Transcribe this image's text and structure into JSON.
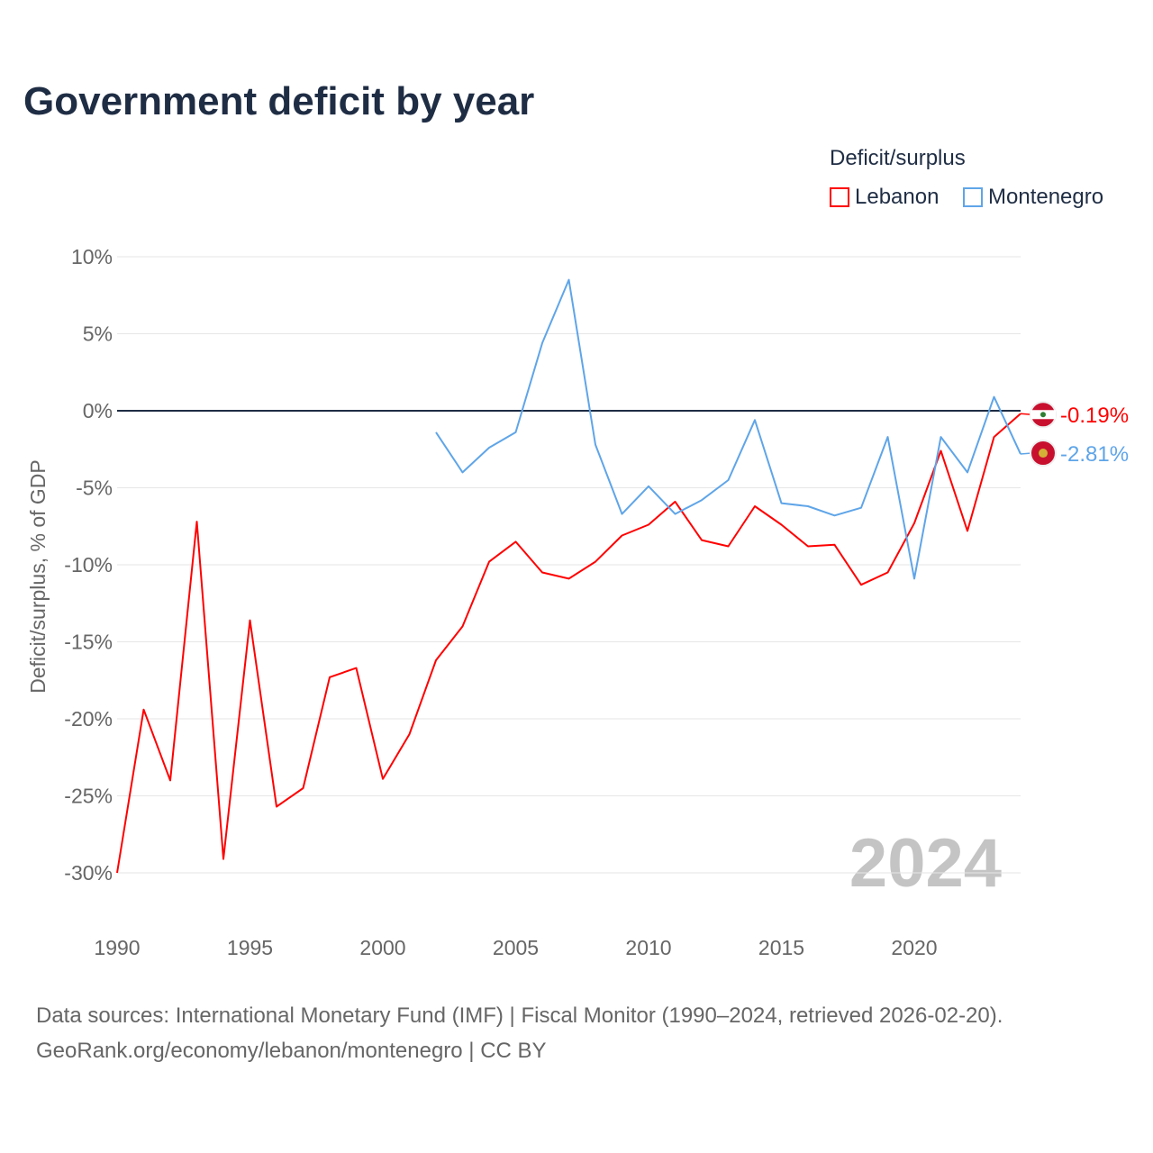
{
  "title": "Government deficit by year",
  "legend": {
    "title": "Deficit/surplus",
    "items": [
      {
        "name": "Lebanon",
        "color": "#ff0000"
      },
      {
        "name": "Montenegro",
        "color": "#5fa5e8"
      }
    ]
  },
  "watermark_year": "2024",
  "source": {
    "line1": "Data sources: International Monetary Fund (IMF) | Fiscal Monitor (1990–2024, retrieved 2026-02-20).",
    "line2": "GeoRank.org/economy/lebanon/montenegro | CC BY"
  },
  "chart_data": {
    "type": "line",
    "title": "Government deficit by year",
    "xlabel": "",
    "ylabel": "Deficit/surplus, % of GDP",
    "xlim": [
      1990,
      2024
    ],
    "ylim": [
      -33,
      11
    ],
    "xticks": [
      1990,
      1995,
      2000,
      2005,
      2010,
      2015,
      2020
    ],
    "yticks": [
      10,
      5,
      0,
      -5,
      -10,
      -15,
      -20,
      -25,
      -30
    ],
    "ytick_labels": [
      "10%",
      "5%",
      "0%",
      "-5%",
      "-10%",
      "-15%",
      "-20%",
      "-25%",
      "-30%"
    ],
    "grid": true,
    "legend_position": "top-right",
    "series": [
      {
        "name": "Lebanon",
        "color": "#ff0000",
        "end_label": "-0.19%",
        "start_year": 1990,
        "values": [
          -30,
          -19.4,
          -24.0,
          -7.2,
          -29.1,
          -13.6,
          -25.7,
          -24.5,
          -17.3,
          -16.7,
          -23.9,
          -21.0,
          -16.2,
          -14.0,
          -9.8,
          -8.5,
          -10.5,
          -10.9,
          -9.8,
          -8.1,
          -7.4,
          -5.9,
          -8.4,
          -8.8,
          -6.2,
          -7.4,
          -8.8,
          -8.7,
          -11.3,
          -10.5,
          -7.3,
          -2.6,
          -7.8,
          -1.7,
          -0.19
        ]
      },
      {
        "name": "Montenegro",
        "color": "#5fa5e8",
        "end_label": "-2.81%",
        "start_year": 2002,
        "values": [
          -1.4,
          -4.0,
          -2.4,
          -1.4,
          4.4,
          8.5,
          -2.2,
          -6.7,
          -4.9,
          -6.7,
          -5.8,
          -4.5,
          -0.6,
          -6.0,
          -6.2,
          -6.8,
          -6.3,
          -1.7,
          -10.9,
          -1.7,
          -4.0,
          0.9,
          -2.81
        ]
      }
    ]
  }
}
